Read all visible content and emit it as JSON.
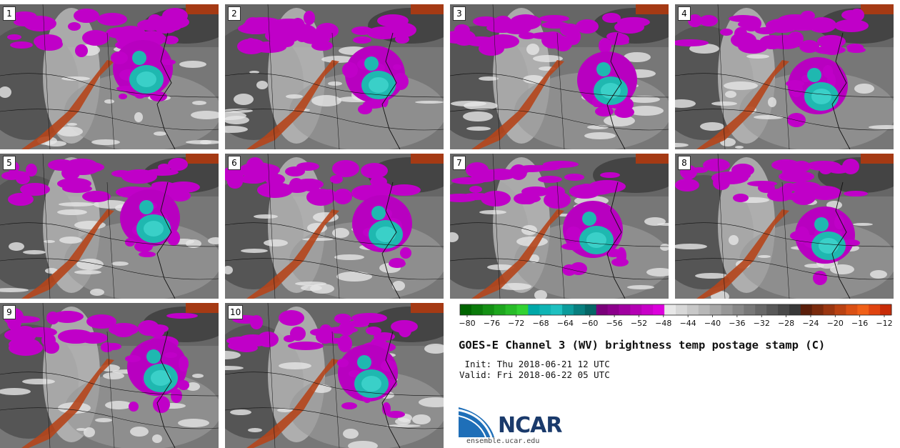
{
  "panels": [
    {
      "label": "1"
    },
    {
      "label": "2"
    },
    {
      "label": "3"
    },
    {
      "label": "4"
    },
    {
      "label": "5"
    },
    {
      "label": "6"
    },
    {
      "label": "7"
    },
    {
      "label": "8"
    },
    {
      "label": "9"
    },
    {
      "label": "10"
    }
  ],
  "colorbar": {
    "tick_labels": [
      "−80",
      "−76",
      "−72",
      "−68",
      "−64",
      "−60",
      "−56",
      "−52",
      "−48",
      "−44",
      "−40",
      "−36",
      "−32",
      "−28",
      "−24",
      "−20",
      "−16",
      "−12"
    ],
    "colors": [
      "#006400",
      "#0a7a0a",
      "#149014",
      "#1ea61e",
      "#28bc28",
      "#32d232",
      "#00a8a8",
      "#0fb4b4",
      "#1ec0c0",
      "#0c9c9c",
      "#087f7f",
      "#066666",
      "#7a007a",
      "#8c008c",
      "#a000a0",
      "#b400b4",
      "#c800c8",
      "#dc00dc",
      "#e8e8e8",
      "#d8d8d8",
      "#c8c8c8",
      "#b8b8b8",
      "#a8a8a8",
      "#989898",
      "#888888",
      "#787878",
      "#686868",
      "#585858",
      "#484848",
      "#383838",
      "#5a1e0a",
      "#7a2a0c",
      "#9a3610",
      "#ba4212",
      "#da5014",
      "#f06018",
      "#e04410",
      "#c82c08"
    ]
  },
  "title": "GOES-E Channel 3 (WV) brightness temp postage stamp (C)",
  "init": " Init: Thu 2018-06-21 12 UTC",
  "valid": "Valid: Fri 2018-06-22 05 UTC",
  "logo": {
    "text": "NCAR",
    "url": "ensemble.ucar.edu"
  }
}
